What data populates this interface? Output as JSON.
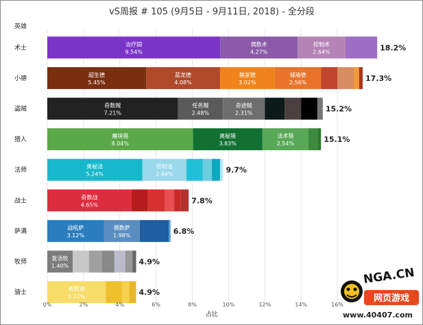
{
  "chart_data": {
    "type": "bar",
    "orientation": "horizontal",
    "stacked": true,
    "title": "vS周报 # 105 (9月5日 - 9月11日, 2018) - 全分段",
    "column_header": "英雄",
    "xlabel": "占比",
    "xlim": [
      0,
      16
    ],
    "x_ticks": [
      "0%",
      "2%",
      "4%",
      "6%",
      "8%",
      "10%",
      "12%",
      "14%",
      "16%"
    ],
    "grid": true,
    "rows": [
      {
        "name": "术士",
        "total": "18.2%",
        "segments": [
          {
            "label": "治疗园",
            "text": "9.54%",
            "value": 9.54,
            "color": "#7a35c8"
          },
          {
            "label": "偶数术",
            "text": "4.27%",
            "value": 4.27,
            "color": "#8b5aa8"
          },
          {
            "label": "控制术",
            "text": "2.64%",
            "value": 2.64,
            "color": "#b583b6"
          },
          {
            "label": "",
            "text": "",
            "value": 1.75,
            "color": "#9e6ec4"
          }
        ]
      },
      {
        "name": "小德",
        "total": "17.3%",
        "segments": [
          {
            "label": "超生德",
            "text": "5.45%",
            "value": 5.45,
            "color": "#7a2e10"
          },
          {
            "label": "蓝龙德",
            "text": "4.08%",
            "value": 4.08,
            "color": "#b0482a"
          },
          {
            "label": "换家德",
            "text": "3.02%",
            "value": 3.02,
            "color": "#f0841a"
          },
          {
            "label": "城墙德",
            "text": "2.56%",
            "value": 2.56,
            "color": "#e8742a"
          },
          {
            "label": "",
            "text": "",
            "value": 0.9,
            "color": "#c0452e"
          },
          {
            "label": "",
            "text": "",
            "value": 0.9,
            "color": "#d98c62"
          },
          {
            "label": "",
            "text": "",
            "value": 0.29,
            "color": "#f39a3a"
          },
          {
            "label": "",
            "text": "",
            "value": 0.2,
            "color": "#b0341c"
          }
        ]
      },
      {
        "name": "盗贼",
        "total": "15.2%",
        "segments": [
          {
            "label": "奇数贼",
            "text": "7.21%",
            "value": 7.21,
            "color": "#222222"
          },
          {
            "label": "任务贼",
            "text": "2.48%",
            "value": 2.48,
            "color": "#5a5a5a"
          },
          {
            "label": "奇迹贼",
            "text": "2.31%",
            "value": 2.31,
            "color": "#6e6e6e"
          },
          {
            "label": "",
            "text": "",
            "value": 1.1,
            "color": "#0c1a1a"
          },
          {
            "label": "",
            "text": "",
            "value": 0.9,
            "color": "#4a4040"
          },
          {
            "label": "",
            "text": "",
            "value": 0.9,
            "color": "#000000"
          },
          {
            "label": "",
            "text": "",
            "value": 0.3,
            "color": "#777777"
          }
        ]
      },
      {
        "name": "猎人",
        "total": "15.1%",
        "segments": [
          {
            "label": "魔块猎",
            "text": "8.04%",
            "value": 8.04,
            "color": "#5aa84a"
          },
          {
            "label": "奥秘猎",
            "text": "3.83%",
            "value": 3.83,
            "color": "#117032"
          },
          {
            "label": "法术猎",
            "text": "2.54%",
            "value": 2.54,
            "color": "#58a858"
          },
          {
            "label": "",
            "text": "",
            "value": 0.5,
            "color": "#3e8a3e"
          },
          {
            "label": "",
            "text": "",
            "value": 0.19,
            "color": "#2a7a2a"
          }
        ]
      },
      {
        "name": "法师",
        "total": "9.7%",
        "segments": [
          {
            "label": "奥秘法",
            "text": "5.24%",
            "value": 5.24,
            "color": "#17b8cc"
          },
          {
            "label": "控制法",
            "text": "2.44%",
            "value": 2.44,
            "color": "#9ad8ec"
          },
          {
            "label": "",
            "text": "",
            "value": 0.9,
            "color": "#22c0d8"
          },
          {
            "label": "",
            "text": "",
            "value": 0.5,
            "color": "#6ccce0"
          },
          {
            "label": "",
            "text": "",
            "value": 0.45,
            "color": "#0fa7bf"
          },
          {
            "label": "",
            "text": "",
            "value": 0.17,
            "color": "#bde6f2"
          }
        ]
      },
      {
        "name": "战士",
        "total": "7.8%",
        "segments": [
          {
            "label": "奇数战",
            "text": "4.65%",
            "value": 4.65,
            "color": "#dc2d3e"
          },
          {
            "label": "",
            "text": "",
            "value": 0.9,
            "color": "#b61c1c"
          },
          {
            "label": "",
            "text": "",
            "value": 0.95,
            "color": "#d83030"
          },
          {
            "label": "",
            "text": "",
            "value": 0.5,
            "color": "#e85050"
          },
          {
            "label": "",
            "text": "",
            "value": 0.35,
            "color": "#c82a2a"
          },
          {
            "label": "",
            "text": "",
            "value": 0.45,
            "color": "#b63030"
          }
        ]
      },
      {
        "name": "萨满",
        "total": "6.8%",
        "segments": [
          {
            "label": "战吼萨",
            "text": "3.12%",
            "value": 3.12,
            "color": "#2a7ec0"
          },
          {
            "label": "偶数萨",
            "text": "1.98%",
            "value": 1.98,
            "color": "#5a8ec0"
          },
          {
            "label": "",
            "text": "",
            "value": 1.6,
            "color": "#1f5fa0"
          },
          {
            "label": "",
            "text": "",
            "value": 0.1,
            "color": "#4d9ad6"
          }
        ]
      },
      {
        "name": "牧师",
        "total": "4.9%",
        "segments": [
          {
            "label": "复活牧",
            "text": "1.40%",
            "value": 1.4,
            "color": "#7c7c7c"
          },
          {
            "label": "",
            "text": "",
            "value": 0.9,
            "color": "#c8c8c8"
          },
          {
            "label": "",
            "text": "",
            "value": 0.7,
            "color": "#a0a0a0"
          },
          {
            "label": "",
            "text": "",
            "value": 0.7,
            "color": "#888888"
          },
          {
            "label": "",
            "text": "",
            "value": 0.6,
            "color": "#bbbbcc"
          },
          {
            "label": "",
            "text": "",
            "value": 0.4,
            "color": "#999999"
          },
          {
            "label": "",
            "text": "",
            "value": 0.2,
            "color": "#666666"
          }
        ]
      },
      {
        "name": "骑士",
        "total": "4.9%",
        "segments": [
          {
            "label": "奇数骑",
            "text": "3.22%",
            "value": 3.22,
            "color": "#f7dc6a"
          },
          {
            "label": "",
            "text": "",
            "value": 0.9,
            "color": "#f0c02c"
          },
          {
            "label": "",
            "text": "",
            "value": 0.4,
            "color": "#f7d04e"
          },
          {
            "label": "",
            "text": "",
            "value": 0.38,
            "color": "#e8b828"
          }
        ]
      }
    ]
  },
  "watermark": {
    "logo_text": "NGA.CN",
    "badge_text": "网页游戏",
    "url_text": "www.40407.com"
  }
}
